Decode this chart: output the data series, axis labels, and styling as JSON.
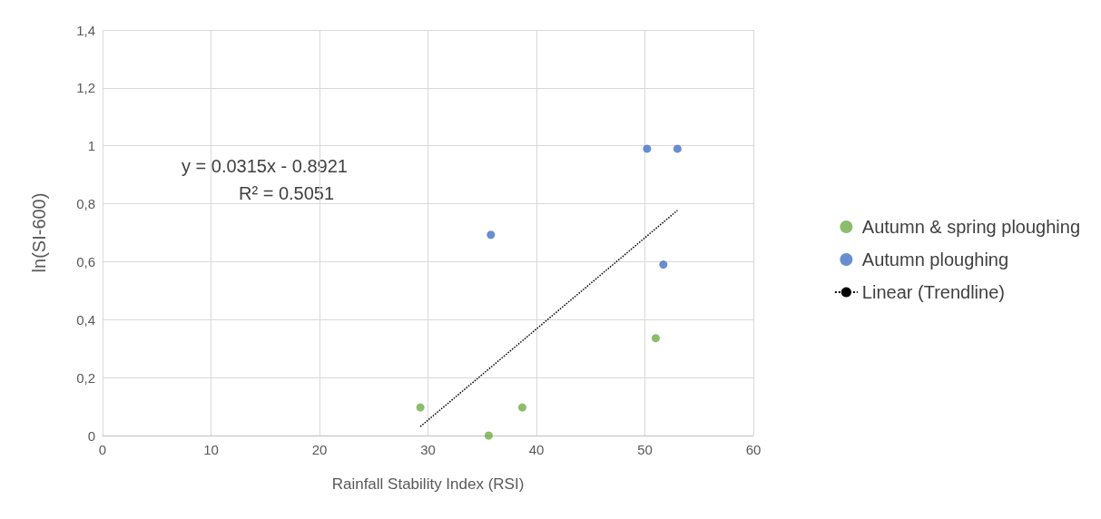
{
  "chart_data": {
    "type": "scatter",
    "xlabel": "Rainfall Stability Index (RSI)",
    "ylabel": "ln(SI-600)",
    "series": [
      {
        "name": "Autumn & spring ploughing",
        "color": "#70ad47",
        "x": [
          29.3,
          35.6,
          38.7,
          51.0
        ],
        "values": [
          0.097,
          0,
          0.097,
          0.336
        ]
      },
      {
        "name": "Autumn ploughing",
        "color": "#4472c4",
        "x": [
          35.8,
          50.2,
          53.0,
          51.7
        ],
        "values": [
          0.693,
          0.99,
          0.99,
          0.59
        ]
      },
      {
        "name": "Linear (Trendline)",
        "type": "line",
        "color": "#000000",
        "line_style": "dotted",
        "marker": "none",
        "x": [
          29.3,
          53.0
        ],
        "values": [
          0.031,
          0.777
        ]
      }
    ],
    "annotations": [
      "y = 0.0315x - 0.8921",
      "R² = 0.5051"
    ],
    "xlim": [
      0,
      60
    ],
    "xticks": [
      0,
      10,
      20,
      30,
      40,
      50,
      60
    ],
    "ylim": [
      0,
      1.4
    ],
    "yticks": [
      0,
      {
        "value": 0.2,
        "label": "0,2"
      },
      {
        "value": 0.4,
        "label": "0,4"
      },
      {
        "value": 0.6,
        "label": "0,6"
      },
      {
        "value": 0.8,
        "label": "0,8"
      },
      1,
      {
        "value": 1.2,
        "label": "1,2"
      },
      {
        "value": 1.4,
        "label": "1,4"
      }
    ],
    "grid": true,
    "legend": "right",
    "marker": "circle"
  }
}
